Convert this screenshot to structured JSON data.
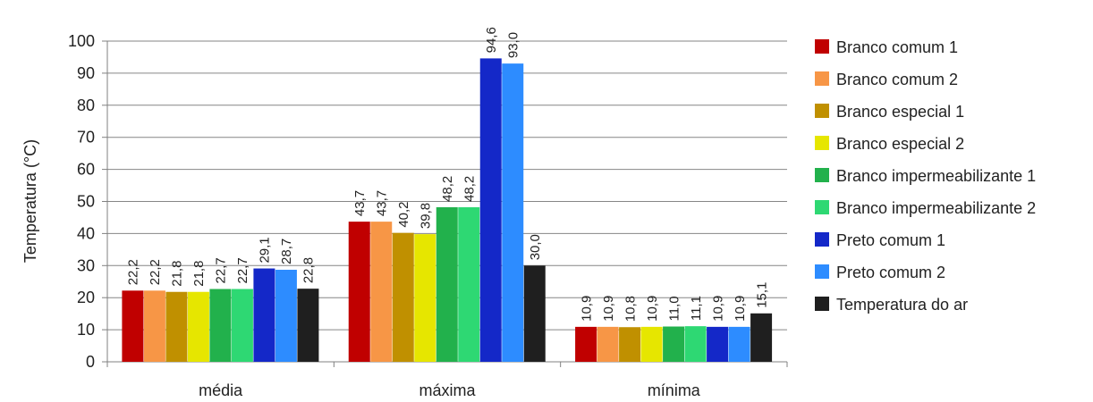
{
  "chart_data": {
    "type": "bar",
    "title": "",
    "xlabel": "",
    "ylabel": "Temperatura (°C)",
    "ylim": [
      0,
      100
    ],
    "yticks": [
      "0",
      "10",
      "20",
      "30",
      "40",
      "50",
      "60",
      "70",
      "80",
      "90",
      "100"
    ],
    "grid": true,
    "legend_position": "right",
    "categories": [
      "média",
      "máxima",
      "mínima"
    ],
    "series": [
      {
        "name": "Branco comum 1",
        "color": "#c00000",
        "values": [
          22.2,
          43.7,
          10.9
        ],
        "labels": [
          "22,2",
          "43,7",
          "10,9"
        ]
      },
      {
        "name": "Branco comum 2",
        "color": "#f79646",
        "values": [
          22.2,
          43.7,
          10.9
        ],
        "labels": [
          "22,2",
          "43,7",
          "10,9"
        ]
      },
      {
        "name": "Branco especial 1",
        "color": "#c09000",
        "values": [
          21.8,
          40.2,
          10.8
        ],
        "labels": [
          "21,8",
          "40,2",
          "10,8"
        ]
      },
      {
        "name": "Branco especial 2",
        "color": "#e6e600",
        "values": [
          21.8,
          39.8,
          10.9
        ],
        "labels": [
          "21,8",
          "39,8",
          "10,9"
        ]
      },
      {
        "name": "Branco impermeabilizante 1",
        "color": "#22b14c",
        "values": [
          22.7,
          48.2,
          11.0
        ],
        "labels": [
          "22,7",
          "48,2",
          "11,0"
        ]
      },
      {
        "name": "Branco impermeabilizante 2",
        "color": "#2ed873",
        "values": [
          22.7,
          48.2,
          11.1
        ],
        "labels": [
          "22,7",
          "48,2",
          "11,1"
        ]
      },
      {
        "name": "Preto comum 1",
        "color": "#1428c8",
        "values": [
          29.1,
          94.6,
          10.9
        ],
        "labels": [
          "29,1",
          "94,6",
          "10,9"
        ]
      },
      {
        "name": "Preto comum 2",
        "color": "#2d8cff",
        "values": [
          28.7,
          93.0,
          10.9
        ],
        "labels": [
          "28,7",
          "93,0",
          "10,9"
        ]
      },
      {
        "name": "Temperatura do ar",
        "color": "#1f1f1f",
        "values": [
          22.8,
          30.0,
          15.1
        ],
        "labels": [
          "22,8",
          "30,0",
          "15,1"
        ]
      }
    ]
  }
}
